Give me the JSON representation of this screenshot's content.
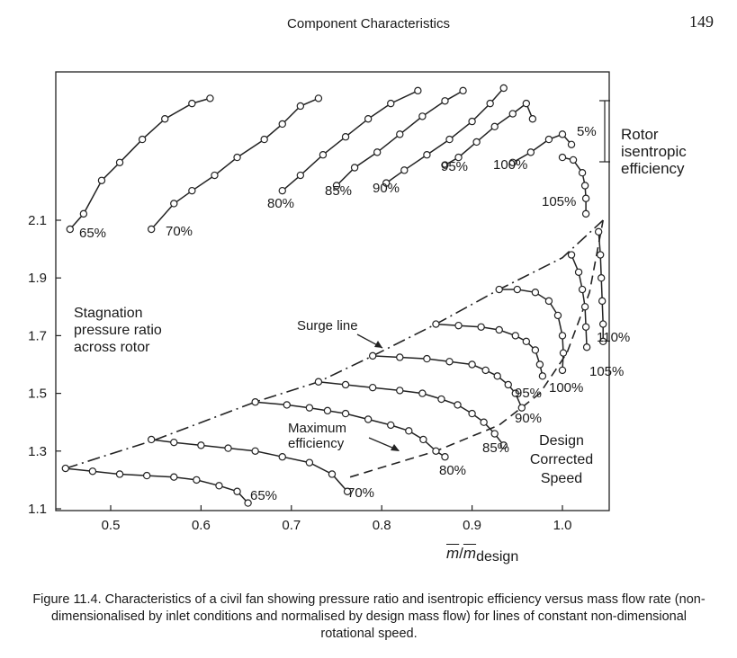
{
  "page": {
    "running_title": "Component Characteristics",
    "page_number": "149"
  },
  "caption": "Figure 11.4. Characteristics of a civil fan showing pressure ratio and isentropic efficiency versus mass flow rate (non-dimensionalised by inlet conditions and normalised by design mass flow) for lines of constant non-dimensional rotational speed.",
  "annotations": {
    "y_title_lines": [
      "Stagnation",
      "pressure ratio",
      "across rotor"
    ],
    "efficiency_title_lines": [
      "Rotor",
      "isentropic",
      "efficiency"
    ],
    "efficiency_scale": "5%",
    "surge_line": "Surge line",
    "max_efficiency_lines": [
      "Maximum",
      "efficiency"
    ],
    "design_speed_lines": [
      "Design",
      "Corrected",
      "Speed"
    ]
  },
  "chart_data": {
    "type": "line",
    "xlabel_bar_symbol": "m",
    "xlabel_sep": "/",
    "xlabel_sub": "design",
    "xlim": [
      0.44,
      1.06
    ],
    "ylim": [
      1.1,
      2.1
    ],
    "x_ticks": [
      "0.5",
      "0.6",
      "0.7",
      "0.8",
      "0.9",
      "1.0"
    ],
    "y_ticks": [
      "1.1",
      "1.3",
      "1.5",
      "1.7",
      "1.9",
      "2.1"
    ],
    "grid": false,
    "pressure_ratio_speed_lines": [
      {
        "label": "65%",
        "points": [
          [
            0.45,
            1.24
          ],
          [
            0.48,
            1.23
          ],
          [
            0.51,
            1.22
          ],
          [
            0.54,
            1.215
          ],
          [
            0.57,
            1.21
          ],
          [
            0.595,
            1.2
          ],
          [
            0.62,
            1.18
          ],
          [
            0.64,
            1.16
          ],
          [
            0.652,
            1.12
          ]
        ]
      },
      {
        "label": "70%",
        "points": [
          [
            0.545,
            1.34
          ],
          [
            0.57,
            1.33
          ],
          [
            0.6,
            1.32
          ],
          [
            0.63,
            1.31
          ],
          [
            0.66,
            1.3
          ],
          [
            0.69,
            1.28
          ],
          [
            0.72,
            1.26
          ],
          [
            0.745,
            1.22
          ],
          [
            0.762,
            1.16
          ]
        ]
      },
      {
        "label": "80%",
        "points": [
          [
            0.66,
            1.47
          ],
          [
            0.695,
            1.46
          ],
          [
            0.72,
            1.45
          ],
          [
            0.74,
            1.44
          ],
          [
            0.76,
            1.43
          ],
          [
            0.785,
            1.41
          ],
          [
            0.81,
            1.39
          ],
          [
            0.83,
            1.37
          ],
          [
            0.846,
            1.34
          ],
          [
            0.86,
            1.3
          ],
          [
            0.87,
            1.28
          ]
        ]
      },
      {
        "label": "85%",
        "points": [
          [
            0.73,
            1.54
          ],
          [
            0.76,
            1.53
          ],
          [
            0.79,
            1.52
          ],
          [
            0.82,
            1.51
          ],
          [
            0.845,
            1.5
          ],
          [
            0.866,
            1.48
          ],
          [
            0.884,
            1.46
          ],
          [
            0.9,
            1.43
          ],
          [
            0.913,
            1.4
          ],
          [
            0.925,
            1.36
          ],
          [
            0.935,
            1.32
          ]
        ]
      },
      {
        "label": "90%",
        "points": [
          [
            0.79,
            1.63
          ],
          [
            0.82,
            1.625
          ],
          [
            0.85,
            1.62
          ],
          [
            0.875,
            1.61
          ],
          [
            0.9,
            1.6
          ],
          [
            0.915,
            1.58
          ],
          [
            0.928,
            1.56
          ],
          [
            0.94,
            1.53
          ],
          [
            0.948,
            1.5
          ],
          [
            0.955,
            1.45
          ]
        ]
      },
      {
        "label": "95%",
        "points": [
          [
            0.86,
            1.74
          ],
          [
            0.885,
            1.735
          ],
          [
            0.91,
            1.73
          ],
          [
            0.93,
            1.72
          ],
          [
            0.948,
            1.7
          ],
          [
            0.96,
            1.68
          ],
          [
            0.97,
            1.65
          ],
          [
            0.975,
            1.6
          ],
          [
            0.978,
            1.56
          ]
        ]
      },
      {
        "label": "100%",
        "points": [
          [
            0.93,
            1.86
          ],
          [
            0.95,
            1.86
          ],
          [
            0.97,
            1.85
          ],
          [
            0.985,
            1.82
          ],
          [
            0.995,
            1.77
          ],
          [
            1.0,
            1.7
          ],
          [
            1.001,
            1.64
          ],
          [
            1.0,
            1.58
          ]
        ]
      },
      {
        "label": "105%",
        "points": [
          [
            1.01,
            1.98
          ],
          [
            1.018,
            1.92
          ],
          [
            1.022,
            1.86
          ],
          [
            1.025,
            1.8
          ],
          [
            1.026,
            1.73
          ],
          [
            1.027,
            1.66
          ]
        ]
      },
      {
        "label": "110%",
        "points": [
          [
            1.04,
            2.06
          ],
          [
            1.042,
            1.98
          ],
          [
            1.043,
            1.9
          ],
          [
            1.044,
            1.82
          ],
          [
            1.045,
            1.74
          ],
          [
            1.045,
            1.68
          ]
        ]
      }
    ],
    "surge_line": [
      [
        0.45,
        1.24
      ],
      [
        0.55,
        1.34
      ],
      [
        0.66,
        1.47
      ],
      [
        0.73,
        1.54
      ],
      [
        0.79,
        1.63
      ],
      [
        0.86,
        1.74
      ],
      [
        0.93,
        1.86
      ],
      [
        1.0,
        1.97
      ],
      [
        1.045,
        2.1
      ]
    ],
    "max_efficiency_line": [
      [
        0.765,
        1.21
      ],
      [
        0.86,
        1.3
      ],
      [
        0.93,
        1.39
      ],
      [
        0.975,
        1.5
      ],
      [
        1.005,
        1.64
      ],
      [
        1.03,
        1.85
      ],
      [
        1.045,
        2.1
      ]
    ],
    "efficiency_speed_lines": [
      {
        "label": "65%",
        "points": [
          [
            0.455,
            2.07
          ],
          [
            0.47,
            2.13
          ],
          [
            0.49,
            2.26
          ],
          [
            0.51,
            2.33
          ],
          [
            0.535,
            2.42
          ],
          [
            0.56,
            2.5
          ],
          [
            0.59,
            2.56
          ],
          [
            0.61,
            2.58
          ]
        ]
      },
      {
        "label": "70%",
        "points": [
          [
            0.545,
            2.07
          ],
          [
            0.57,
            2.17
          ],
          [
            0.59,
            2.22
          ],
          [
            0.615,
            2.28
          ],
          [
            0.64,
            2.35
          ],
          [
            0.67,
            2.42
          ],
          [
            0.69,
            2.48
          ],
          [
            0.71,
            2.55
          ],
          [
            0.73,
            2.58
          ]
        ]
      },
      {
        "label": "80%",
        "points": [
          [
            0.69,
            2.22
          ],
          [
            0.71,
            2.28
          ],
          [
            0.735,
            2.36
          ],
          [
            0.76,
            2.43
          ],
          [
            0.785,
            2.5
          ],
          [
            0.81,
            2.56
          ],
          [
            0.84,
            2.61
          ]
        ]
      },
      {
        "label": "85%",
        "points": [
          [
            0.75,
            2.24
          ],
          [
            0.77,
            2.31
          ],
          [
            0.795,
            2.37
          ],
          [
            0.82,
            2.44
          ],
          [
            0.845,
            2.51
          ],
          [
            0.87,
            2.57
          ],
          [
            0.89,
            2.61
          ]
        ]
      },
      {
        "label": "90%",
        "points": [
          [
            0.805,
            2.25
          ],
          [
            0.825,
            2.3
          ],
          [
            0.85,
            2.36
          ],
          [
            0.875,
            2.42
          ],
          [
            0.9,
            2.49
          ],
          [
            0.92,
            2.56
          ],
          [
            0.935,
            2.62
          ]
        ]
      },
      {
        "label": "95%",
        "points": [
          [
            0.87,
            2.32
          ],
          [
            0.885,
            2.35
          ],
          [
            0.905,
            2.41
          ],
          [
            0.925,
            2.47
          ],
          [
            0.945,
            2.52
          ],
          [
            0.96,
            2.56
          ],
          [
            0.967,
            2.5
          ]
        ]
      },
      {
        "label": "100%",
        "points": [
          [
            0.945,
            2.33
          ],
          [
            0.965,
            2.37
          ],
          [
            0.985,
            2.42
          ],
          [
            1.0,
            2.44
          ],
          [
            1.01,
            2.4
          ]
        ]
      },
      {
        "label": "105%",
        "points": [
          [
            1.0,
            2.35
          ],
          [
            1.012,
            2.34
          ],
          [
            1.022,
            2.29
          ],
          [
            1.025,
            2.24
          ],
          [
            1.026,
            2.19
          ],
          [
            1.026,
            2.13
          ]
        ]
      }
    ]
  }
}
